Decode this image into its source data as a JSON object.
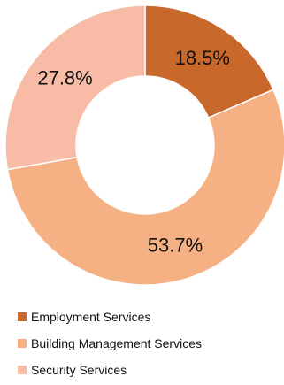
{
  "chart_data": {
    "type": "pie",
    "variant": "donut",
    "title": "",
    "slices": [
      {
        "label": "Employment Services",
        "value": 18.5,
        "display": "18.5%",
        "color": "#C8682B"
      },
      {
        "label": "Building Management Services",
        "value": 53.7,
        "display": "53.7%",
        "color": "#F5B183"
      },
      {
        "label": "Security Services",
        "value": 27.8,
        "display": "27.8%",
        "color": "#F7BBA6"
      }
    ],
    "legend_position": "bottom-left"
  }
}
